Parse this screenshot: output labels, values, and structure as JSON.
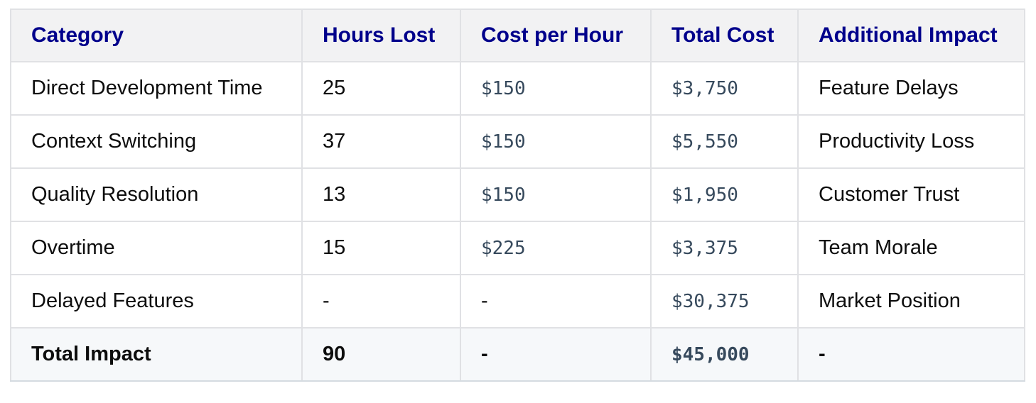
{
  "chart_data": {
    "type": "table",
    "title": "",
    "columns": [
      "Category",
      "Hours Lost",
      "Cost per Hour",
      "Total Cost",
      "Additional Impact"
    ],
    "rows": [
      [
        "Direct Development Time",
        "25",
        "$150",
        "$3,750",
        "Feature Delays"
      ],
      [
        "Context Switching",
        "37",
        "$150",
        "$5,550",
        "Productivity Loss"
      ],
      [
        "Quality Resolution",
        "13",
        "$150",
        "$1,950",
        "Customer Trust"
      ],
      [
        "Overtime",
        "15",
        "$225",
        "$3,375",
        "Team Morale"
      ],
      [
        "Delayed Features",
        "-",
        "-",
        "$30,375",
        "Market Position"
      ],
      [
        "Total Impact",
        "90",
        "-",
        "$45,000",
        "-"
      ]
    ],
    "layout_hints": {
      "header_row": true,
      "total_row_index": 5,
      "money_columns": [
        2,
        3
      ],
      "grid": "full"
    }
  },
  "colors": {
    "header_text": "#00008b",
    "header_bg": "#f2f2f3",
    "body_text": "#0d0d0d",
    "money_text": "#36495c",
    "total_row_bg": "#f6f8fa",
    "grid_line": "#e0e1e4"
  }
}
